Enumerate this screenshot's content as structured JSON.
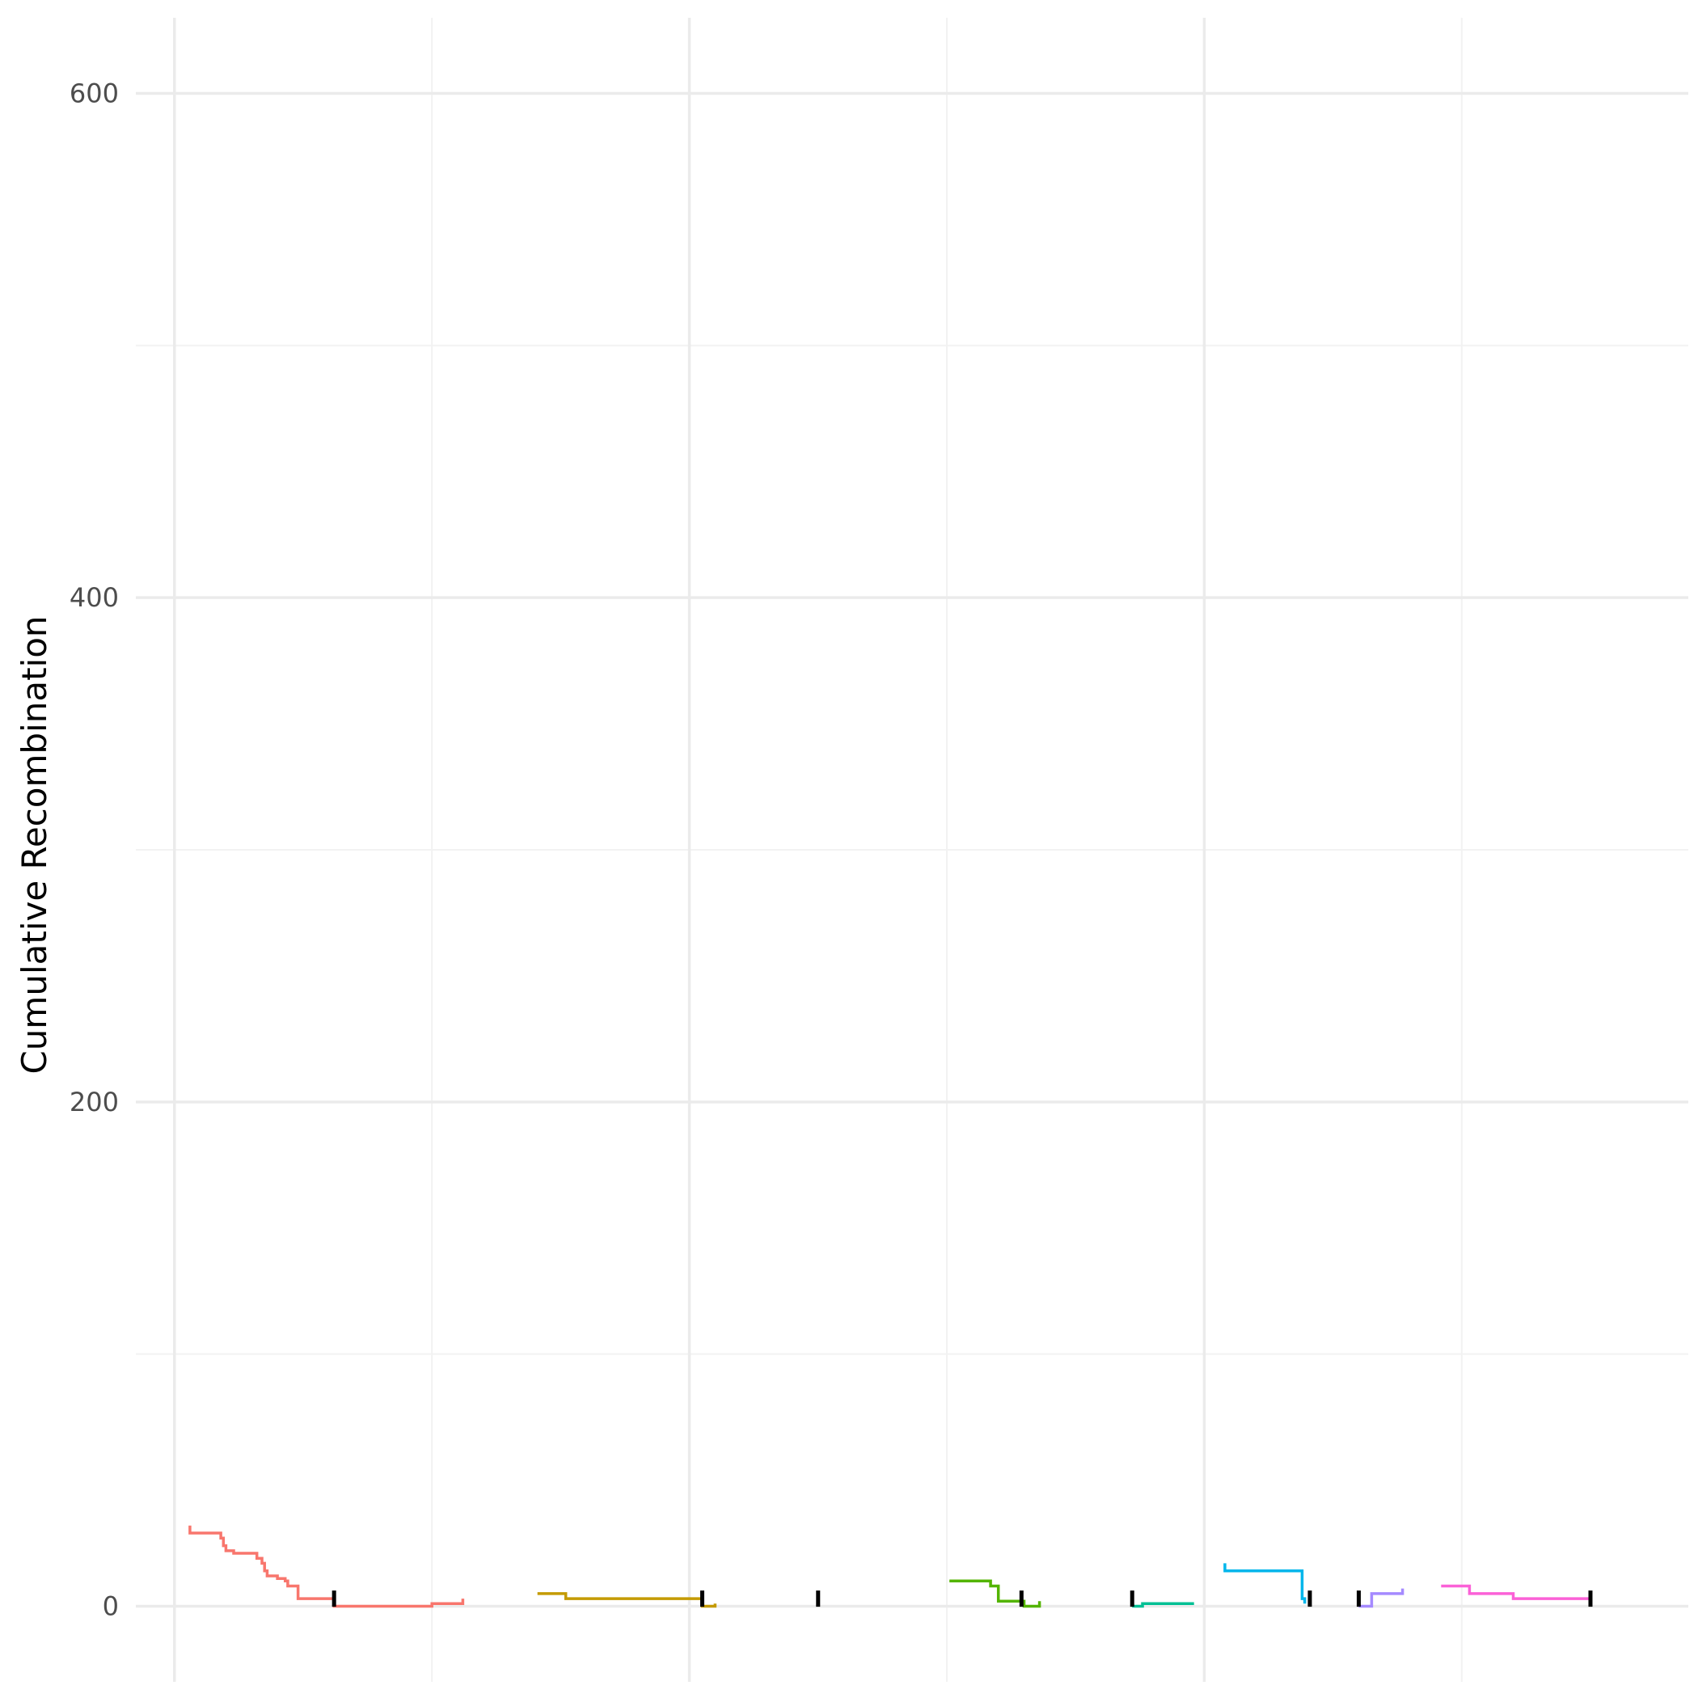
{
  "chart_data": {
    "type": "line",
    "step": true,
    "title": "",
    "xlabel": "",
    "ylabel": "Cumulative Recombination",
    "ylim": [
      -30,
      630
    ],
    "xlim": [
      -1.5,
      58.8
    ],
    "y_ticks": [
      0,
      200,
      400,
      600
    ],
    "y_minor_ticks": [
      100,
      300,
      500
    ],
    "x_major_grid": [
      0,
      20,
      40
    ],
    "x_minor_grid": [
      10,
      30,
      50
    ],
    "x_tick_labels": [],
    "grid": true,
    "legend": "none",
    "series": [
      {
        "color": "#F8766D",
        "points": [
          [
            0.6,
            32
          ],
          [
            0.6,
            29
          ],
          [
            1.8,
            29
          ],
          [
            1.8,
            27
          ],
          [
            1.9,
            27
          ],
          [
            1.9,
            24
          ],
          [
            2.0,
            24
          ],
          [
            2.0,
            22
          ],
          [
            2.3,
            22
          ],
          [
            2.3,
            21
          ],
          [
            3.2,
            21
          ],
          [
            3.2,
            19
          ],
          [
            3.4,
            19
          ],
          [
            3.4,
            17
          ],
          [
            3.5,
            17
          ],
          [
            3.5,
            14
          ],
          [
            3.6,
            14
          ],
          [
            3.6,
            12
          ],
          [
            4.0,
            12
          ],
          [
            4.0,
            11
          ],
          [
            4.3,
            11
          ],
          [
            4.3,
            10
          ],
          [
            4.4,
            10
          ],
          [
            4.4,
            8
          ],
          [
            4.8,
            8
          ],
          [
            4.8,
            3
          ],
          [
            6.2,
            3
          ],
          [
            6.2,
            0
          ],
          [
            10.0,
            0
          ],
          [
            10.0,
            1
          ],
          [
            11.2,
            1
          ],
          [
            11.2,
            3
          ]
        ]
      },
      {
        "color": "#C49A00",
        "points": [
          [
            14.1,
            5
          ],
          [
            15.2,
            5
          ],
          [
            15.2,
            3
          ],
          [
            20.5,
            3
          ],
          [
            20.5,
            0
          ],
          [
            21.0,
            0
          ],
          [
            21.0,
            1
          ]
        ]
      },
      {
        "color": "#53B400",
        "points": [
          [
            30.1,
            10
          ],
          [
            31.7,
            10
          ],
          [
            31.7,
            8
          ],
          [
            32.0,
            8
          ],
          [
            32.0,
            2
          ],
          [
            33.0,
            2
          ],
          [
            33.0,
            0
          ],
          [
            33.6,
            0
          ],
          [
            33.6,
            2
          ]
        ]
      },
      {
        "color": "#00C094",
        "points": [
          [
            37.2,
            0
          ],
          [
            37.6,
            0
          ],
          [
            37.6,
            1
          ],
          [
            39.6,
            1
          ]
        ]
      },
      {
        "color": "#00B6EB",
        "points": [
          [
            40.8,
            17
          ],
          [
            40.8,
            14
          ],
          [
            43.8,
            14
          ],
          [
            43.8,
            3
          ],
          [
            43.9,
            3
          ],
          [
            43.9,
            1
          ]
        ]
      },
      {
        "color": "#A58AFF",
        "points": [
          [
            46.0,
            0
          ],
          [
            46.5,
            0
          ],
          [
            46.5,
            5
          ],
          [
            47.7,
            5
          ],
          [
            47.7,
            7
          ]
        ]
      },
      {
        "color": "#FB61D7",
        "points": [
          [
            49.2,
            8
          ],
          [
            50.3,
            8
          ],
          [
            50.3,
            5
          ],
          [
            52.0,
            5
          ],
          [
            52.0,
            3
          ],
          [
            55.0,
            3
          ]
        ]
      }
    ],
    "boundary_markers": [
      {
        "x": 6.2,
        "y": 3
      },
      {
        "x": 20.5,
        "y": 3
      },
      {
        "x": 25.0,
        "y": 3
      },
      {
        "x": 32.9,
        "y": 3
      },
      {
        "x": 37.2,
        "y": 3
      },
      {
        "x": 44.1,
        "y": 3
      },
      {
        "x": 46.0,
        "y": 3
      },
      {
        "x": 55.0,
        "y": 3
      }
    ]
  }
}
